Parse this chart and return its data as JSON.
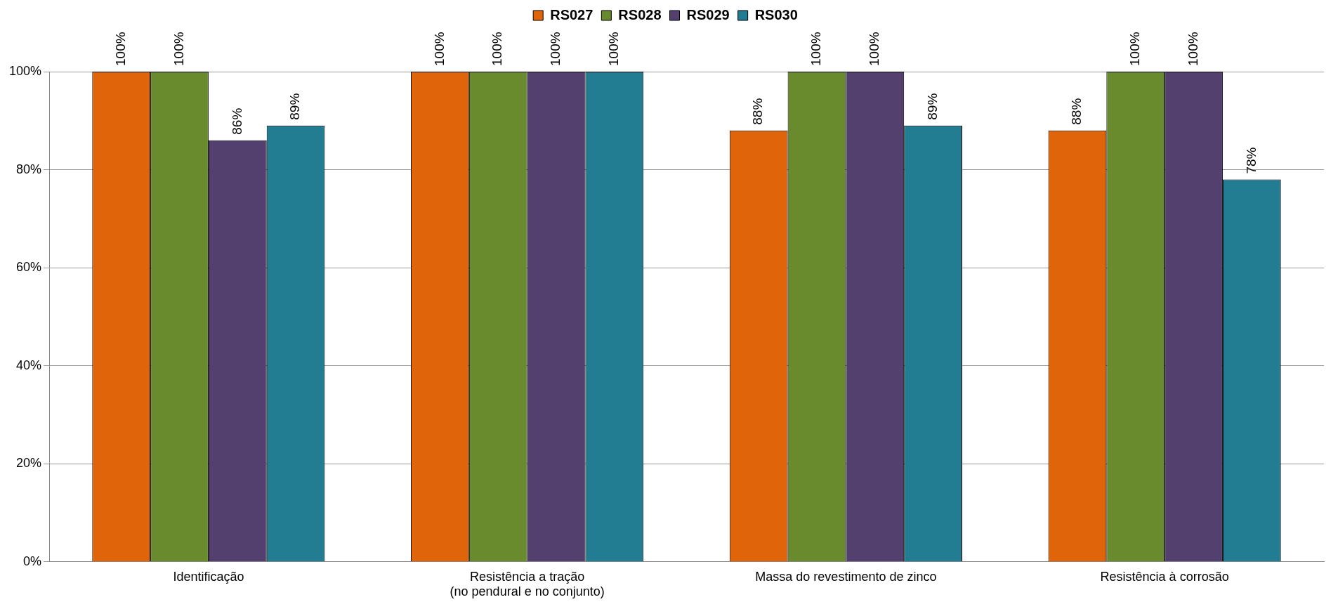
{
  "chart_data": {
    "type": "bar",
    "categories": [
      "Identificação",
      "Resistência a tração\n(no pendural e no conjunto)",
      "Massa do revestimento de zinco",
      "Resistência à corrosão"
    ],
    "series": [
      {
        "name": "RS027",
        "color": "#e0650a",
        "values": [
          100,
          100,
          88,
          88
        ],
        "value_labels": [
          "100%",
          "100%",
          "88%",
          "88%"
        ]
      },
      {
        "name": "RS028",
        "color": "#6a8a2e",
        "values": [
          100,
          100,
          100,
          100
        ],
        "value_labels": [
          "100%",
          "100%",
          "100%",
          "100%"
        ]
      },
      {
        "name": "RS029",
        "color": "#53406f",
        "values": [
          86,
          100,
          100,
          100
        ],
        "value_labels": [
          "86%",
          "100%",
          "100%",
          "100%"
        ]
      },
      {
        "name": "RS030",
        "color": "#227d93",
        "values": [
          89,
          100,
          89,
          78
        ],
        "value_labels": [
          "89%",
          "100%",
          "89%",
          "78%"
        ]
      }
    ],
    "ylim": [
      0,
      100
    ],
    "yticks": [
      {
        "value": 0,
        "label": "0%"
      },
      {
        "value": 20,
        "label": "20%"
      },
      {
        "value": 40,
        "label": "40%"
      },
      {
        "value": 60,
        "label": "60%"
      },
      {
        "value": 80,
        "label": "80%"
      },
      {
        "value": 100,
        "label": "100%"
      }
    ],
    "grid": "y",
    "legend": "top"
  }
}
